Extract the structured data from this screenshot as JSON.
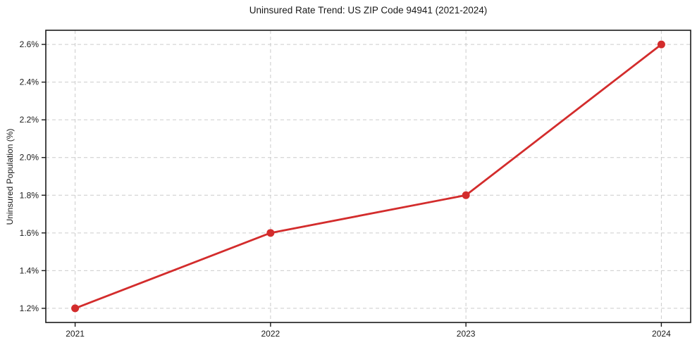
{
  "title": "Uninsured Rate Trend: US ZIP Code 94941 (2021-2024)",
  "chart_data": {
    "type": "line",
    "title": "Uninsured Rate Trend: US ZIP Code 94941 (2021-2024)",
    "xlabel": "",
    "ylabel": "Uninsured Population (%)",
    "x": [
      2021,
      2022,
      2023,
      2024
    ],
    "series": [
      {
        "name": "Uninsured Rate",
        "values": [
          1.2,
          1.6,
          1.8,
          2.6
        ]
      }
    ],
    "xticks": [
      2021,
      2022,
      2023,
      2024
    ],
    "xtick_labels": [
      "2021",
      "2022",
      "2023",
      "2024"
    ],
    "yticks": [
      1.2,
      1.4,
      1.6,
      1.8,
      2.0,
      2.2,
      2.4,
      2.6
    ],
    "ytick_labels": [
      "1.2%",
      "1.4%",
      "1.6%",
      "1.8%",
      "2.0%",
      "2.2%",
      "2.4%",
      "2.6%"
    ],
    "xlim": [
      2020.85,
      2024.15
    ],
    "ylim": [
      1.125,
      2.675
    ],
    "grid": true,
    "grid_style": "dashed",
    "legend": "none",
    "colors": {
      "line": "#d32c2c",
      "marker": "#d32c2c",
      "grid": "#cccccc",
      "axis": "#1a1a1a",
      "text": "#1a1a1a",
      "background": "#ffffff"
    }
  }
}
